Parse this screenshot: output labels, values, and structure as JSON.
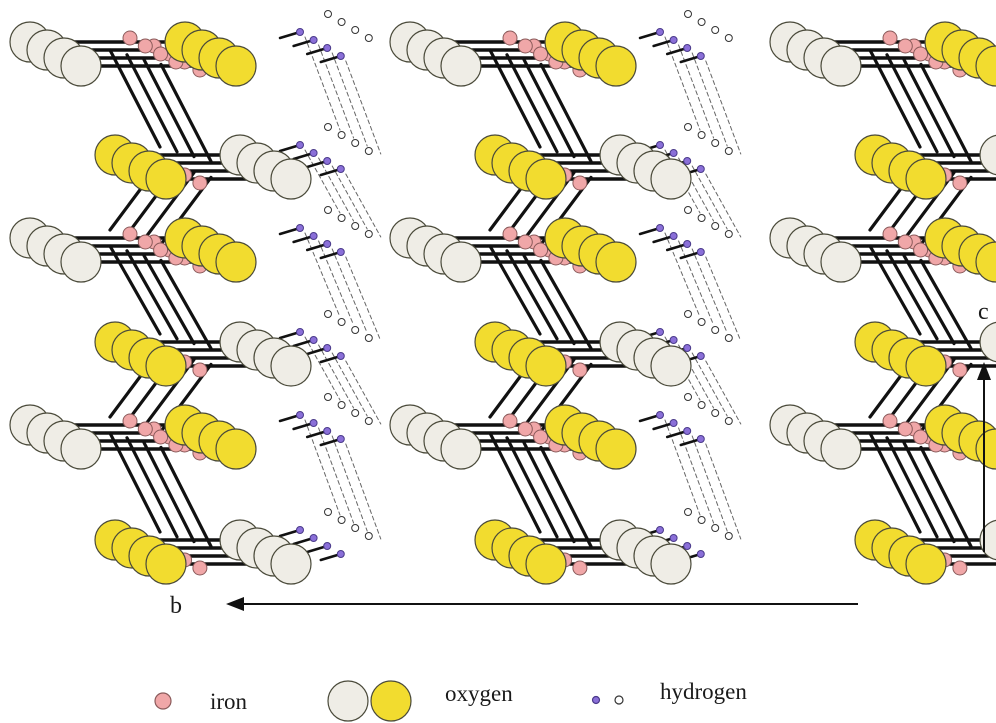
{
  "axes": {
    "b": {
      "label": "b"
    },
    "c": {
      "label": "c"
    }
  },
  "legend": {
    "iron": "iron",
    "oxygen": "oxygen",
    "hydrogen": "hydrogen"
  },
  "colors": {
    "iron": "#f0a7a8",
    "iron_stroke": "#8a5a5a",
    "oxygen_light": "#efede6",
    "oxygen_yellow": "#f2dc2f",
    "oxygen_stroke": "#4a4a3a",
    "hydrogen_bonded": "#8a6fd8",
    "hydrogen_open": "#ffffff",
    "bond": "#111111",
    "hbond": "#666666"
  }
}
